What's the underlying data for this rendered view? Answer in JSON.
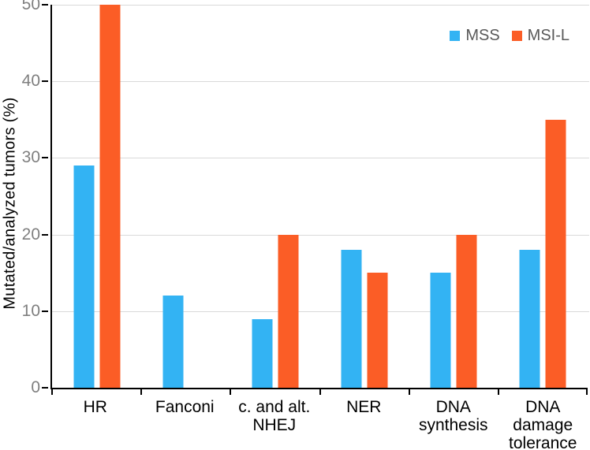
{
  "chart_data": {
    "type": "bar",
    "title": "",
    "xlabel": "",
    "ylabel": "Mutated/analyzed  tumors (%)",
    "ylim": [
      0,
      50
    ],
    "yticks": [
      0,
      10,
      20,
      30,
      40,
      50
    ],
    "grid": "horizontal",
    "legend_position": "top-right",
    "categories": [
      "HR",
      "Fanconi",
      "c. and alt.\nNHEJ",
      "NER",
      "DNA\nsynthesis",
      "DNA\ndamage\ntolerance"
    ],
    "series": [
      {
        "name": "MSS",
        "color": "#33B3F3",
        "values": [
          29,
          12,
          9,
          18,
          15,
          18
        ]
      },
      {
        "name": "MSI-L",
        "color": "#FB5D26",
        "values": [
          50,
          0,
          20,
          15,
          20,
          35
        ]
      }
    ]
  },
  "colors": {
    "axis": "#000000",
    "gridline": "#d9d9d9",
    "y_tick_text": "#7f7f7f",
    "x_tick_text": "#000000",
    "legend_text": "#595959",
    "background": "#ffffff"
  }
}
